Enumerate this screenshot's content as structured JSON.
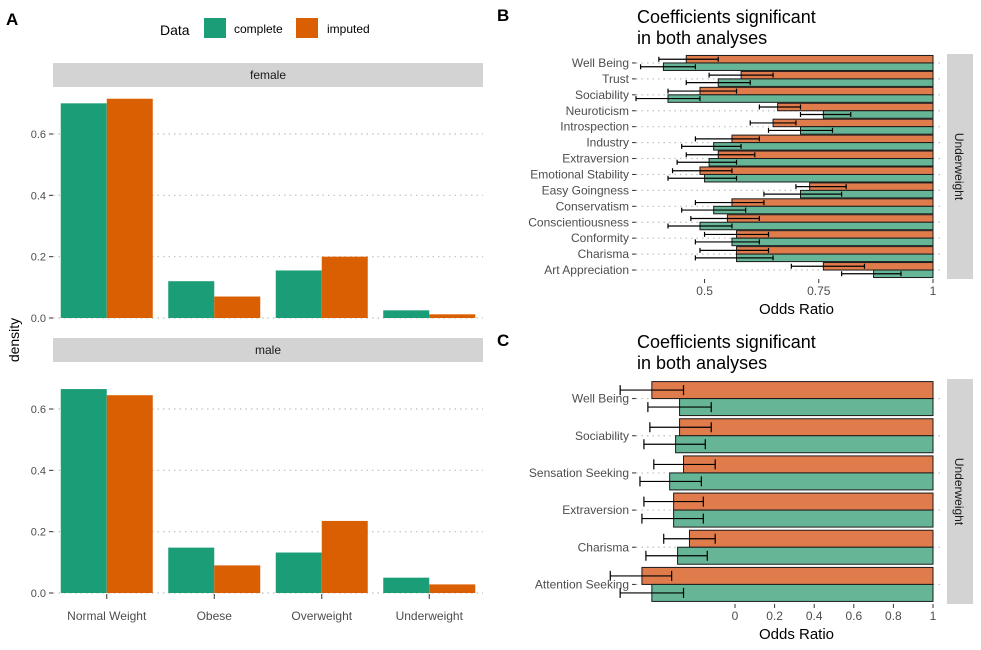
{
  "colors": {
    "complete": "#1b9e77",
    "imputed": "#d95f02",
    "complete_light": "#66b596",
    "imputed_light": "#e07b4c",
    "strip": "#d3d3d3",
    "grid": "#bfbfbf"
  },
  "panel_labels": [
    "A",
    "B",
    "C"
  ],
  "chart_data": [
    {
      "id": "A",
      "type": "bar",
      "ylabel": "density",
      "legend": {
        "title": "Data",
        "entries": [
          "complete",
          "imputed"
        ],
        "placement": "top"
      },
      "categories": [
        "Normal Weight",
        "Obese",
        "Overweight",
        "Underweight"
      ],
      "ylim": [
        0,
        0.75
      ],
      "yticks": [
        "0.0",
        "0.2",
        "0.4",
        "0.6"
      ],
      "facets": [
        {
          "strip": "female",
          "series": [
            {
              "name": "complete",
              "values": [
                0.7,
                0.12,
                0.155,
                0.025
              ]
            },
            {
              "name": "imputed",
              "values": [
                0.715,
                0.07,
                0.2,
                0.012
              ]
            }
          ]
        },
        {
          "strip": "male",
          "series": [
            {
              "name": "complete",
              "values": [
                0.665,
                0.148,
                0.132,
                0.05
              ]
            },
            {
              "name": "imputed",
              "values": [
                0.645,
                0.09,
                0.235,
                0.028
              ]
            }
          ]
        }
      ],
      "grid": "horizontal dotted"
    },
    {
      "id": "B",
      "type": "bar",
      "orientation": "horizontal",
      "title": "Coefficients significant\nin both analyses",
      "xlabel": "Odds Ratio",
      "strip": "Underweight",
      "xlim": [
        0.35,
        1.0
      ],
      "xticks": [
        "0.5",
        "0.75",
        "1"
      ],
      "categories": [
        "Well Being",
        "Trust",
        "Sociability",
        "Neuroticism",
        "Introspection",
        "Industry",
        "Extraversion",
        "Emotional Stability",
        "Easy Goingness",
        "Conservatism",
        "Conscientiousness",
        "Conformity",
        "Charisma",
        "Art Appreciation"
      ],
      "series": [
        {
          "name": "imputed",
          "values": [
            0.46,
            0.58,
            0.49,
            0.66,
            0.65,
            0.56,
            0.53,
            0.49,
            0.73,
            0.56,
            0.55,
            0.57,
            0.57,
            0.76
          ],
          "lower": [
            0.4,
            0.51,
            0.42,
            0.62,
            0.6,
            0.48,
            0.46,
            0.43,
            0.7,
            0.48,
            0.47,
            0.5,
            0.49,
            0.69
          ],
          "upper": [
            0.53,
            0.65,
            0.57,
            0.71,
            0.7,
            0.62,
            0.61,
            0.56,
            0.81,
            0.63,
            0.62,
            0.64,
            0.64,
            0.85
          ]
        },
        {
          "name": "complete",
          "values": [
            0.41,
            0.53,
            0.42,
            0.76,
            0.71,
            0.52,
            0.51,
            0.5,
            0.71,
            0.52,
            0.49,
            0.56,
            0.57,
            0.87
          ],
          "lower": [
            0.36,
            0.46,
            0.35,
            0.71,
            0.64,
            0.45,
            0.44,
            0.42,
            0.63,
            0.45,
            0.42,
            0.48,
            0.48,
            0.8
          ],
          "upper": [
            0.48,
            0.6,
            0.49,
            0.82,
            0.78,
            0.58,
            0.57,
            0.57,
            0.8,
            0.59,
            0.56,
            0.62,
            0.65,
            0.93
          ]
        }
      ],
      "grid": "horizontal dotted"
    },
    {
      "id": "C",
      "type": "bar",
      "orientation": "horizontal",
      "title": "Coefficients significant\nin both analyses",
      "xlabel": "Odds Ratio",
      "strip": "Underweight",
      "xlim": [
        -0.5,
        1.0
      ],
      "xticks": [
        "0",
        "0.2",
        "0.4",
        "0.6",
        "0.8",
        "1"
      ],
      "categories": [
        "Well Being",
        "Sociability",
        "Sensation Seeking",
        "Extraversion",
        "Charisma",
        "Attention Seeking"
      ],
      "series": [
        {
          "name": "imputed",
          "values": [
            -0.42,
            -0.28,
            -0.26,
            -0.31,
            -0.23,
            -0.47
          ],
          "lower": [
            -0.58,
            -0.43,
            -0.41,
            -0.46,
            -0.36,
            -0.63
          ],
          "upper": [
            -0.26,
            -0.12,
            -0.1,
            -0.16,
            -0.1,
            -0.32
          ]
        },
        {
          "name": "complete",
          "values": [
            -0.28,
            -0.3,
            -0.33,
            -0.31,
            -0.29,
            -0.42
          ],
          "lower": [
            -0.44,
            -0.46,
            -0.48,
            -0.47,
            -0.45,
            -0.58
          ],
          "upper": [
            -0.12,
            -0.15,
            -0.17,
            -0.16,
            -0.14,
            -0.26
          ]
        }
      ],
      "grid": "horizontal dotted"
    }
  ]
}
